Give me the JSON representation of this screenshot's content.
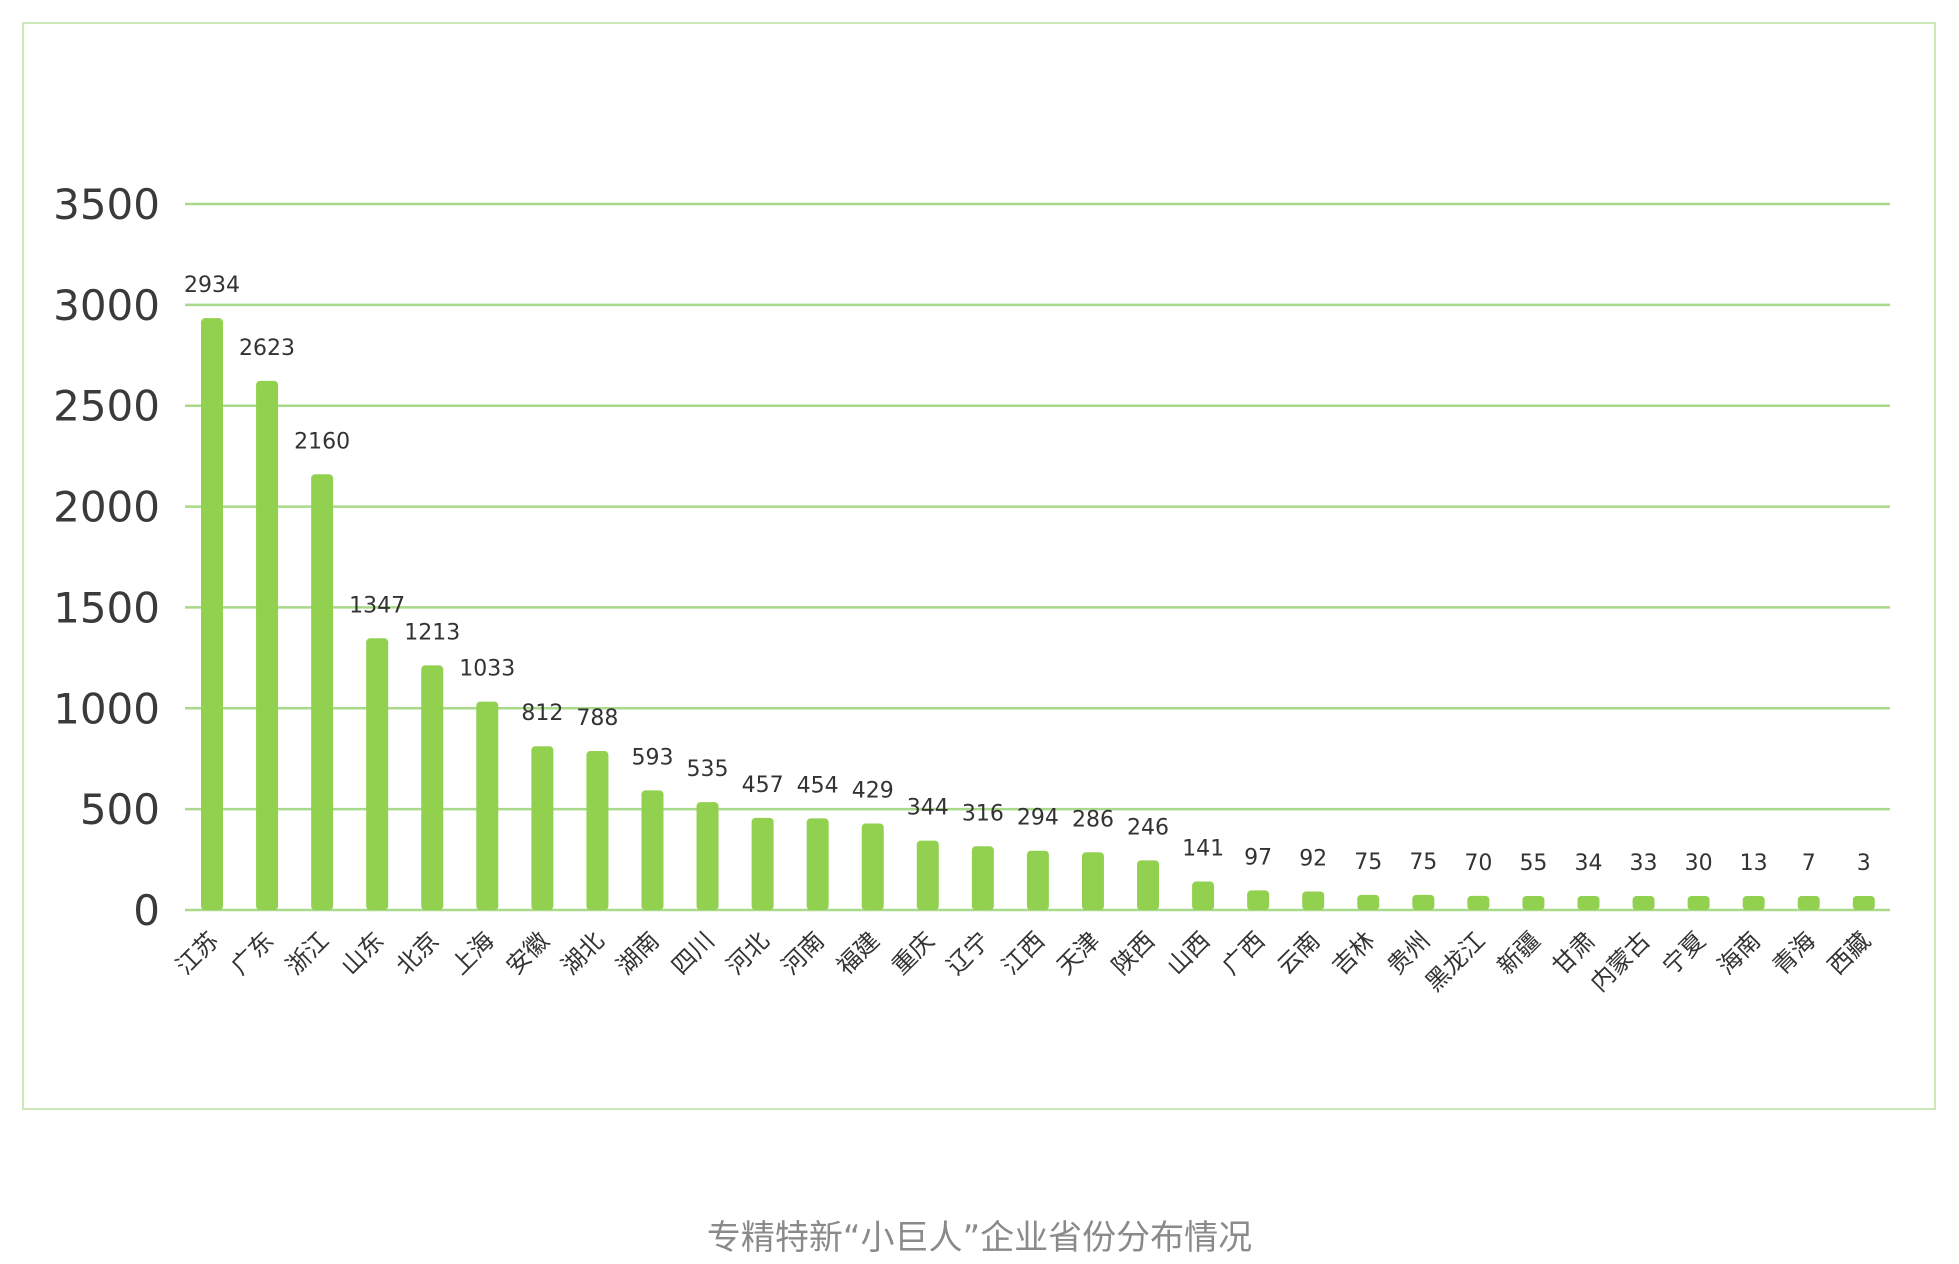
{
  "caption": "专精特新“小巨人”企业省份分布情况",
  "chart_data": {
    "type": "bar",
    "categories": [
      "江苏",
      "广东",
      "浙江",
      "山东",
      "北京",
      "上海",
      "安徽",
      "湖北",
      "湖南",
      "四川",
      "河北",
      "河南",
      "福建",
      "重庆",
      "辽宁",
      "江西",
      "天津",
      "陕西",
      "山西",
      "广西",
      "云南",
      "吉林",
      "贵州",
      "黑龙江",
      "新疆",
      "甘肃",
      "内蒙古",
      "宁夏",
      "海南",
      "青海",
      "西藏"
    ],
    "values": [
      2934,
      2623,
      2160,
      1347,
      1213,
      1033,
      812,
      788,
      593,
      535,
      457,
      454,
      429,
      344,
      316,
      294,
      286,
      246,
      141,
      97,
      92,
      75,
      75,
      70,
      55,
      34,
      33,
      30,
      13,
      7,
      3
    ],
    "yticks": [
      0,
      500,
      1000,
      1500,
      2000,
      2500,
      3000,
      3500
    ],
    "ylim": [
      0,
      3500
    ],
    "grid": true,
    "legend": "none",
    "colors": {
      "bar": "#92d050",
      "grid": "#a9d98a",
      "frame": "#cfe8b8"
    }
  }
}
